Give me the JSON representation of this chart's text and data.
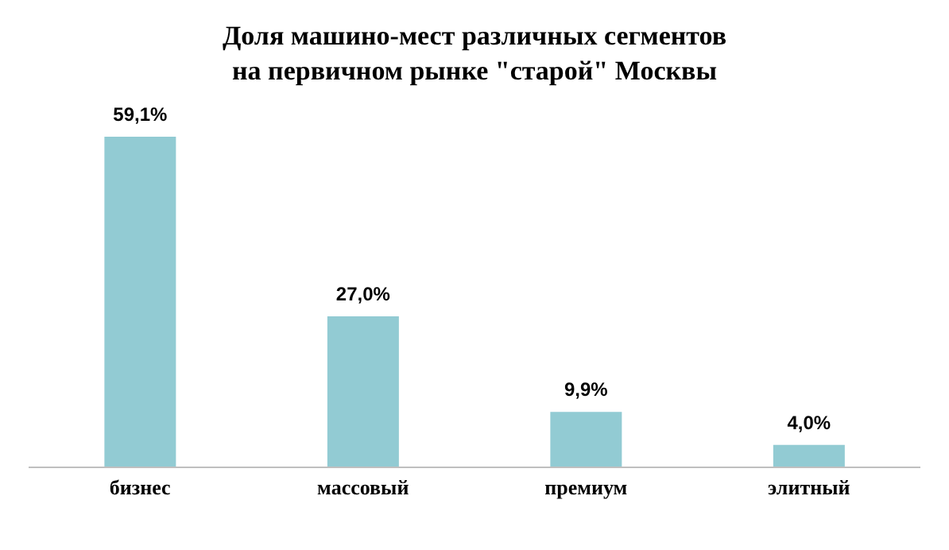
{
  "chart_data": {
    "type": "bar",
    "title": "Доля машино-мест различных сегментов\nна первичном рынке \"старой\" Москвы",
    "categories": [
      "бизнес",
      "массовый",
      "премиум",
      "элитный"
    ],
    "values": [
      59.1,
      27.0,
      9.9,
      4.0
    ],
    "value_labels": [
      "59,1%",
      "27,0%",
      "9,9%",
      "4,0%"
    ],
    "color": "#92cbd3"
  }
}
